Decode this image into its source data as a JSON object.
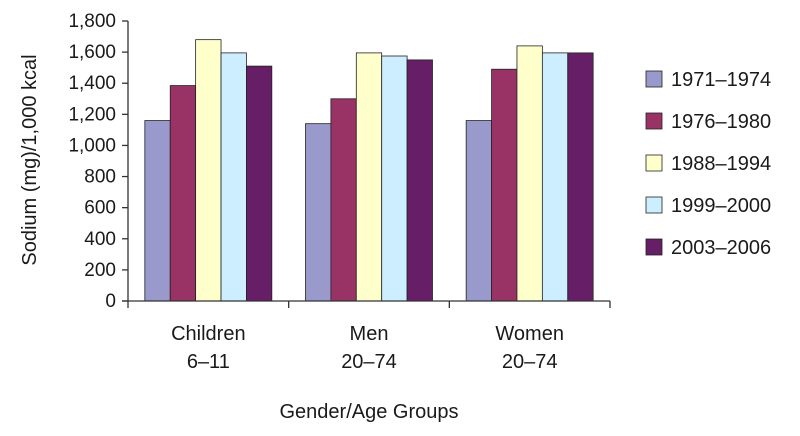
{
  "chart_data": {
    "type": "bar",
    "xlabel": "Gender/Age Groups",
    "ylabel": "Sodium (mg)/1,000 kcal",
    "ylim": [
      0,
      1800
    ],
    "yticks": [
      0,
      200,
      400,
      600,
      800,
      1000,
      1200,
      1400,
      1600,
      1800
    ],
    "ytick_labels": [
      "0",
      "200",
      "400",
      "600",
      "800",
      "1,000",
      "1,200",
      "1,400",
      "1,600",
      "1,800"
    ],
    "categories": [
      {
        "line1": "Children",
        "line2": "6–11"
      },
      {
        "line1": "Men",
        "line2": "20–74"
      },
      {
        "line1": "Women",
        "line2": "20–74"
      }
    ],
    "series": [
      {
        "name": "1971–1974",
        "color": "#9999cc",
        "values": [
          1160,
          1140,
          1160
        ]
      },
      {
        "name": "1976–1980",
        "color": "#993366",
        "values": [
          1385,
          1300,
          1490
        ]
      },
      {
        "name": "1988–1994",
        "color": "#ffffcc",
        "values": [
          1680,
          1595,
          1640
        ]
      },
      {
        "name": "1999–2000",
        "color": "#cceeff",
        "values": [
          1595,
          1575,
          1595
        ]
      },
      {
        "name": "2003–2006",
        "color": "#661f66",
        "values": [
          1510,
          1550,
          1595
        ]
      }
    ],
    "grid": false,
    "legend_position": "right"
  }
}
